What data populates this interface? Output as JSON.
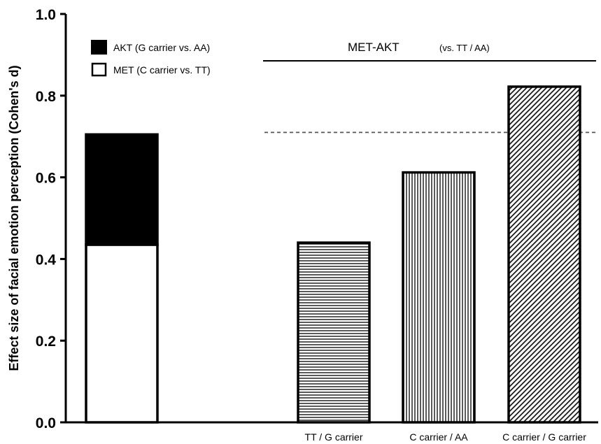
{
  "chart_data": {
    "type": "bar",
    "ylabel": "Effect size of facial emotion perception (Cohen's d)",
    "ylim": [
      0.0,
      1.0
    ],
    "yticks": [
      "0.0",
      "0.2",
      "0.4",
      "0.6",
      "0.8",
      "1.0"
    ],
    "stacked_bar": {
      "segments": [
        {
          "name": "MET (C carrier vs. TT)",
          "value": 0.435,
          "fill": "#ffffff"
        },
        {
          "name": "AKT (G carrier vs. AA)",
          "value": 0.27,
          "fill": "#000000"
        }
      ]
    },
    "legend": [
      {
        "label": "AKT (G carrier vs. AA)",
        "fill": "#000000"
      },
      {
        "label": "MET (C carrier vs. TT)",
        "fill": "#ffffff"
      }
    ],
    "group_title": "MET-AKT",
    "group_subtitle": "(vs. TT / AA)",
    "categories": [
      "TT / G carrier",
      "C carrier / AA",
      "C carrier / G carrier"
    ],
    "values": [
      0.44,
      0.612,
      0.822
    ],
    "patterns": [
      "horizontal-lines",
      "vertical-lines",
      "diagonal-lines"
    ],
    "reference_line": 0.71
  }
}
